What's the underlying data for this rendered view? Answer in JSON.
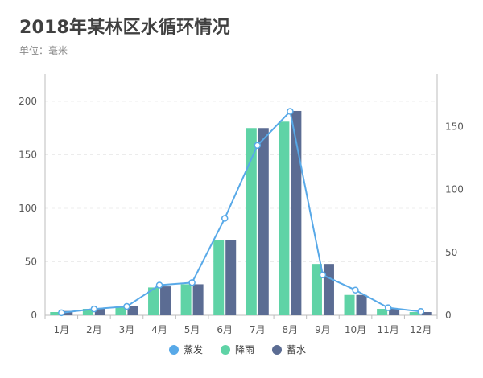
{
  "title": "2018年某林区水循环情况",
  "subtitle": "单位：毫米",
  "colors": {
    "evaporation": "#58A9E8",
    "rainfall": "#5FD3A6",
    "storage": "#5B6C93",
    "axis": "#bdbdbd",
    "grid": "#ececec"
  },
  "chart_data": {
    "type": "bar",
    "categories": [
      "1月",
      "2月",
      "3月",
      "4月",
      "5月",
      "6月",
      "7月",
      "8月",
      "9月",
      "10月",
      "11月",
      "12月"
    ],
    "series": [
      {
        "name": "降雨",
        "type": "bar",
        "axis": "left",
        "values": [
          3,
          6,
          8,
          26,
          29,
          70,
          175,
          181,
          48,
          19,
          6,
          3
        ]
      },
      {
        "name": "蓄水",
        "type": "bar",
        "axis": "left",
        "values": [
          4,
          6,
          9,
          27,
          29,
          70,
          175,
          191,
          48,
          19,
          6,
          3
        ]
      },
      {
        "name": "蒸发",
        "type": "line",
        "axis": "right",
        "values": [
          2,
          5,
          7,
          24,
          26,
          77,
          135,
          162,
          32,
          20,
          6,
          3
        ]
      }
    ],
    "y_left": {
      "ticks": [
        0,
        50,
        100,
        150,
        200
      ],
      "range": [
        0,
        200
      ]
    },
    "y_right": {
      "ticks": [
        0,
        50,
        100,
        150
      ],
      "range": [
        0,
        170
      ]
    },
    "grid": true,
    "legend": {
      "position": "bottom",
      "items": [
        "蒸发",
        "降雨",
        "蓄水"
      ]
    }
  }
}
